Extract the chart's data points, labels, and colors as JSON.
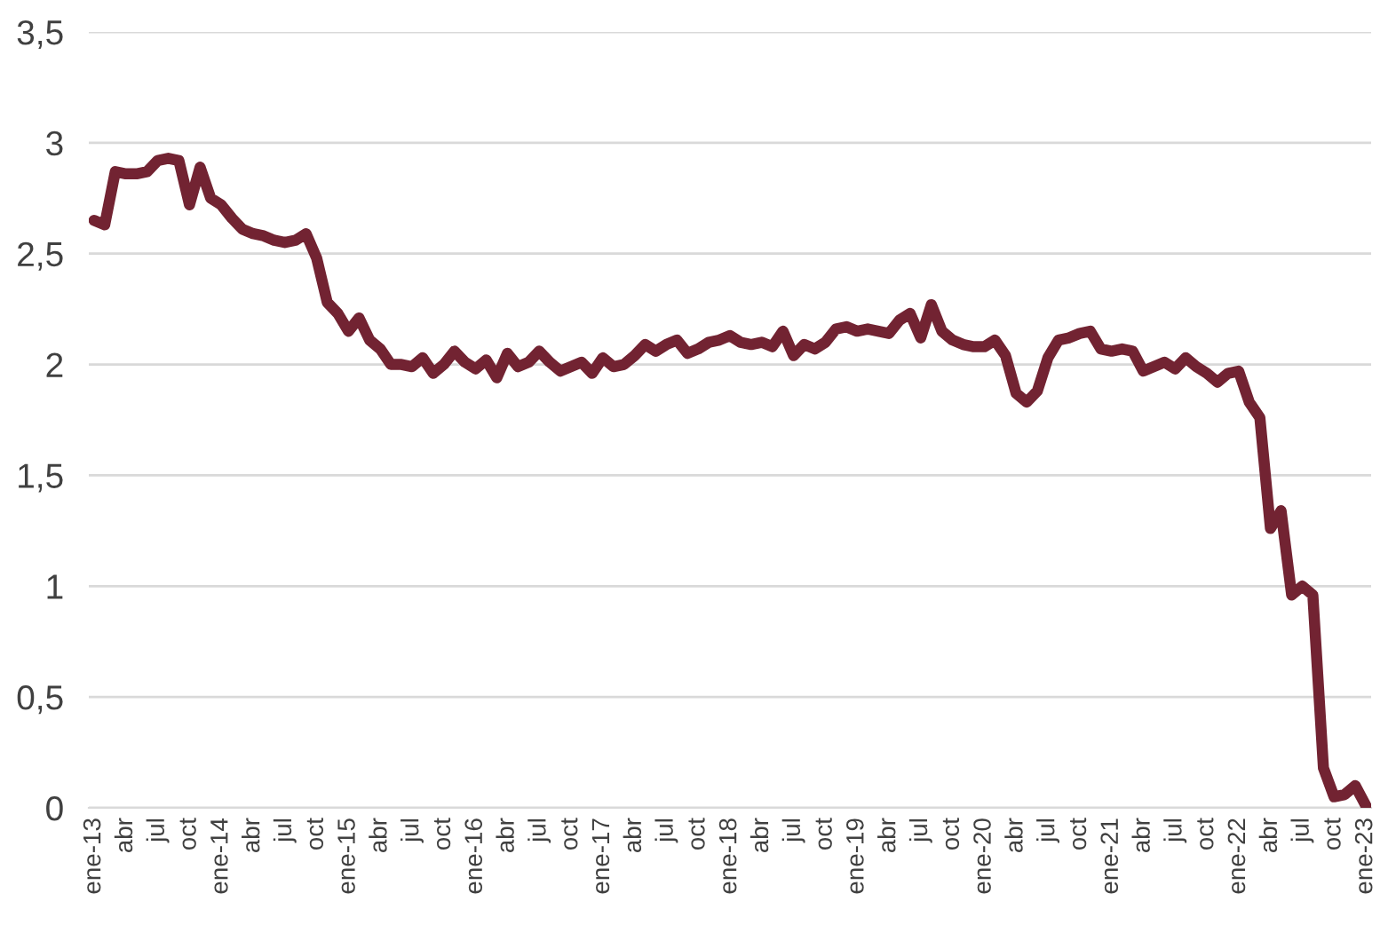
{
  "chart_data": {
    "type": "line",
    "categories": [
      "ene-13",
      null,
      null,
      "abr",
      null,
      null,
      "jul",
      null,
      null,
      "oct",
      null,
      null,
      "ene-14",
      null,
      null,
      "abr",
      null,
      null,
      "jul",
      null,
      null,
      "oct",
      null,
      null,
      "ene-15",
      null,
      null,
      "abr",
      null,
      null,
      "jul",
      null,
      null,
      "oct",
      null,
      null,
      "ene-16",
      null,
      null,
      "abr",
      null,
      null,
      "jul",
      null,
      null,
      "oct",
      null,
      null,
      "ene-17",
      null,
      null,
      "abr",
      null,
      null,
      "jul",
      null,
      null,
      "oct",
      null,
      null,
      "ene-18",
      null,
      null,
      "abr",
      null,
      null,
      "jul",
      null,
      null,
      "oct",
      null,
      null,
      "ene-19",
      null,
      null,
      "abr",
      null,
      null,
      "jul",
      null,
      null,
      "oct",
      null,
      null,
      "ene-20",
      null,
      null,
      "abr",
      null,
      null,
      "jul",
      null,
      null,
      "oct",
      null,
      null,
      "ene-21",
      null,
      null,
      "abr",
      null,
      null,
      "jul",
      null,
      null,
      "oct",
      null,
      null,
      "ene-22",
      null,
      null,
      "abr",
      null,
      null,
      "jul",
      null,
      null,
      "oct",
      null,
      null,
      "ene-23"
    ],
    "series": [
      {
        "color": "#722332",
        "values": [
          2.65,
          2.63,
          2.87,
          2.86,
          2.86,
          2.87,
          2.92,
          2.93,
          2.92,
          2.72,
          2.89,
          2.75,
          2.72,
          2.66,
          2.61,
          2.59,
          2.58,
          2.56,
          2.55,
          2.56,
          2.59,
          2.48,
          2.28,
          2.23,
          2.15,
          2.21,
          2.11,
          2.07,
          2.0,
          2.0,
          1.99,
          2.03,
          1.96,
          2.0,
          2.06,
          2.01,
          1.98,
          2.02,
          1.94,
          2.05,
          1.99,
          2.01,
          2.06,
          2.01,
          1.97,
          1.99,
          2.01,
          1.96,
          2.03,
          1.99,
          2.0,
          2.04,
          2.09,
          2.06,
          2.09,
          2.11,
          2.05,
          2.07,
          2.1,
          2.11,
          2.13,
          2.1,
          2.09,
          2.1,
          2.08,
          2.15,
          2.04,
          2.09,
          2.07,
          2.1,
          2.16,
          2.17,
          2.15,
          2.16,
          2.15,
          2.14,
          2.2,
          2.23,
          2.12,
          2.27,
          2.15,
          2.11,
          2.09,
          2.08,
          2.08,
          2.11,
          2.04,
          1.87,
          1.83,
          1.88,
          2.03,
          2.11,
          2.12,
          2.14,
          2.15,
          2.07,
          2.06,
          2.07,
          2.06,
          1.97,
          1.99,
          2.01,
          1.98,
          2.03,
          1.99,
          1.96,
          1.92,
          1.96,
          1.97,
          1.83,
          1.76,
          1.26,
          1.34,
          0.96,
          1.0,
          0.96,
          0.18,
          0.05,
          0.06,
          0.1,
          0.01
        ]
      }
    ],
    "ylim": [
      0,
      3.5
    ],
    "yticks": [
      0,
      {
        "value": 0.5,
        "label": "0,5"
      },
      1,
      {
        "value": 1.5,
        "label": "1,5"
      },
      2,
      {
        "value": 2.5,
        "label": "2,5"
      },
      3,
      {
        "value": 3.5,
        "label": "3,5"
      }
    ],
    "grid": "y",
    "legend": false,
    "marker": "none",
    "line_style": "solid"
  }
}
